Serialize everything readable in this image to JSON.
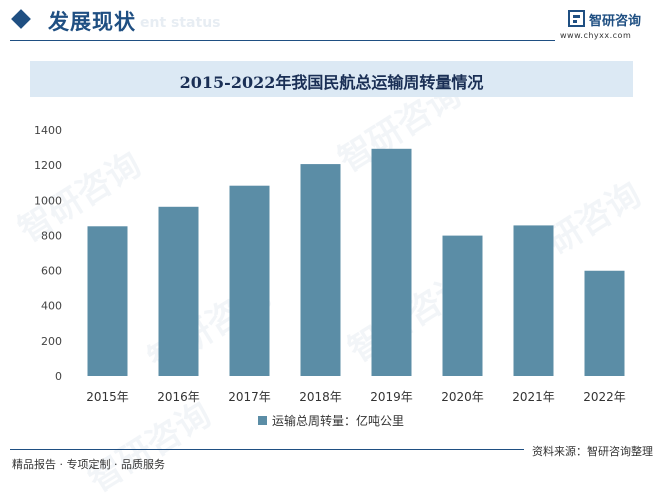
{
  "header": {
    "title": "发展现状",
    "watermark_text": "ent status"
  },
  "logo": {
    "name": "智研咨询",
    "url": "www.chyxx.com",
    "icon": "zhiyan-logo-icon",
    "color": "#1f4f82"
  },
  "footer": {
    "left": "精品报告 · 专项定制 · 品质服务",
    "right": "资料来源：智研咨询整理"
  },
  "watermarks": [
    "智研咨询",
    "智研咨询",
    "智研咨询",
    "智研咨询",
    "智研咨询",
    "智研咨询"
  ],
  "chart_data": {
    "type": "bar",
    "title": "2015-2022年我国民航总运输周转量情况",
    "categories": [
      "2015年",
      "2016年",
      "2017年",
      "2018年",
      "2019年",
      "2020年",
      "2021年",
      "2022年"
    ],
    "series": [
      {
        "name": "运输总周转量：亿吨公里",
        "values": [
          852,
          963,
          1083,
          1206,
          1293,
          799,
          857,
          599
        ],
        "color": "#5b8da6"
      }
    ],
    "yticks": [
      0,
      200,
      400,
      600,
      800,
      1000,
      1200,
      1400
    ],
    "ylim": [
      0,
      1400
    ],
    "grid": false,
    "legend": "bottom"
  }
}
